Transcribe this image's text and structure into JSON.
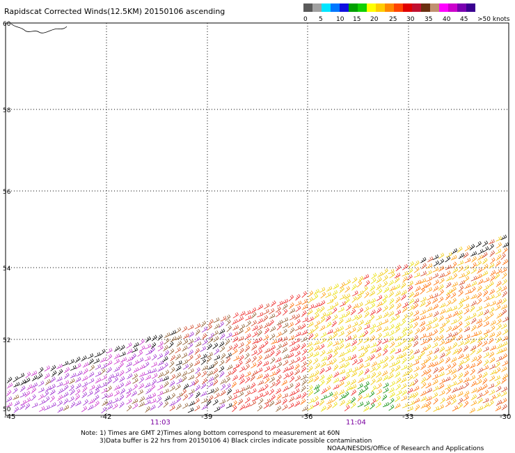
{
  "title": "Rapidscat Corrected Winds(12.5KM) 20150106 ascending",
  "legend": {
    "colors": [
      "#5a5a5a",
      "#a0a0a0",
      "#00e5ff",
      "#0077ff",
      "#1010e0",
      "#00a000",
      "#10d000",
      "#ffff00",
      "#ffcc00",
      "#ff8800",
      "#ff4400",
      "#e00000",
      "#c01030",
      "#6a3010",
      "#c09070",
      "#ff00ff",
      "#cc00cc",
      "#7a00b0",
      "#3a0090"
    ],
    "labels": [
      "0",
      "5",
      "10",
      "15",
      "20",
      "25",
      "30",
      "35",
      "40",
      "45",
      ">50 knots"
    ]
  },
  "lat_labels": [
    "60",
    "58",
    "56",
    "54",
    "52",
    "50"
  ],
  "lon_labels": [
    "-45",
    "-42",
    "-39",
    "-36",
    "-33",
    "-30"
  ],
  "time_labels": [
    "11:03",
    "11:04"
  ],
  "notes": {
    "line1": "Note: 1) Times are GMT 2)Times along bottom correspond to measurement at 60N",
    "line2": "3)Data buffer is 22 hrs from 20150106 4) Black circles indicate possible contamination",
    "line3": "NOAA/NESDIS/Office of Research and Applications"
  },
  "colors": {
    "time_label": "#7a00a0",
    "speed_palette": [
      "#000000",
      "#9e2fd0",
      "#cc33cc",
      "#8b5a2b",
      "#d04020",
      "#ee2222",
      "#ff6a00",
      "#ff9a00",
      "#f0c800",
      "#e8e000",
      "#008a00"
    ]
  }
}
